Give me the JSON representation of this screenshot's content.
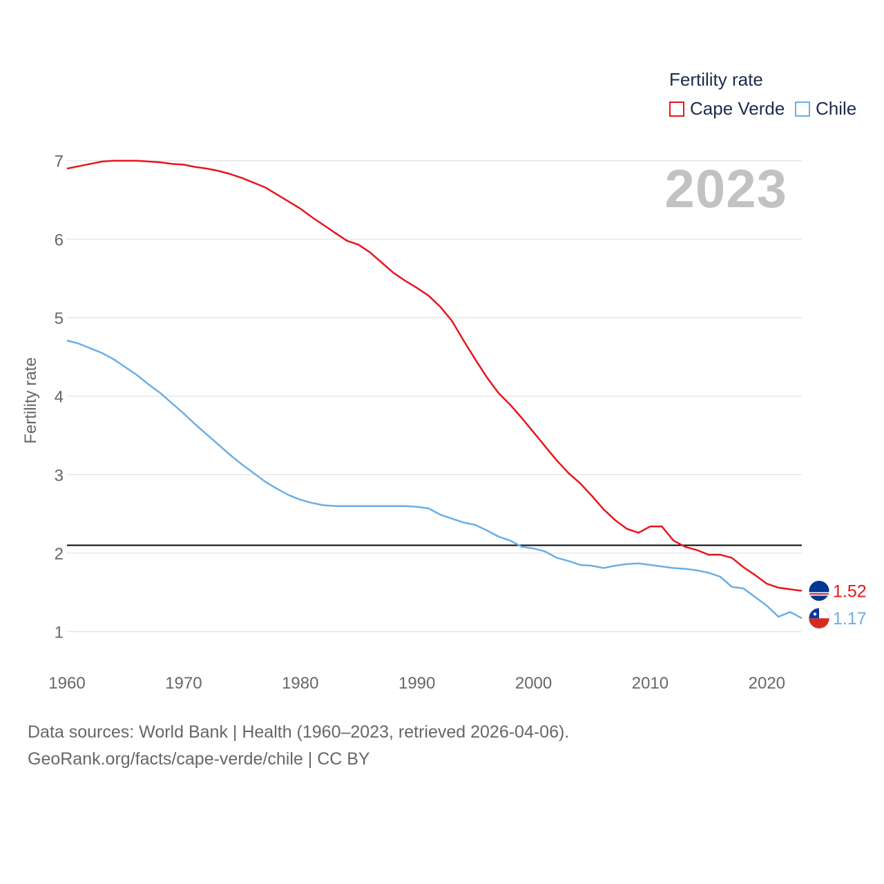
{
  "legend": {
    "title": "Fertility rate"
  },
  "year_label": "2023",
  "source": {
    "line1": "Data sources: World Bank | Health (1960–2023, retrieved 2026-04-06).",
    "line2": "GeoRank.org/facts/cape-verde/chile | CC BY"
  },
  "colors": {
    "cape_verde": "#e8141c",
    "chile": "#6aaee6",
    "grid": "#e6e6e6",
    "axis_text": "#666666",
    "reference_line": "#111111"
  },
  "chart_data": {
    "type": "line",
    "title": "Fertility rate",
    "xlabel": "",
    "ylabel": "Fertility rate",
    "xlim": [
      1960,
      2023
    ],
    "ylim": [
      0.6,
      7.2
    ],
    "x_ticks": [
      1960,
      1970,
      1980,
      1990,
      2000,
      2010,
      2020
    ],
    "y_ticks": [
      1,
      2,
      3,
      4,
      5,
      6,
      7
    ],
    "reference_line": 2.1,
    "x": [
      1960,
      1961,
      1962,
      1963,
      1964,
      1965,
      1966,
      1967,
      1968,
      1969,
      1970,
      1971,
      1972,
      1973,
      1974,
      1975,
      1976,
      1977,
      1978,
      1979,
      1980,
      1981,
      1982,
      1983,
      1984,
      1985,
      1986,
      1987,
      1988,
      1989,
      1990,
      1991,
      1992,
      1993,
      1994,
      1995,
      1996,
      1997,
      1998,
      1999,
      2000,
      2001,
      2002,
      2003,
      2004,
      2005,
      2006,
      2007,
      2008,
      2009,
      2010,
      2011,
      2012,
      2013,
      2014,
      2015,
      2016,
      2017,
      2018,
      2019,
      2020,
      2021,
      2022,
      2023
    ],
    "series": [
      {
        "name": "Cape Verde",
        "color": "#e8141c",
        "end_label": "1.52",
        "values": [
          6.9,
          6.93,
          6.96,
          6.99,
          7.0,
          7.0,
          7.0,
          6.99,
          6.98,
          6.96,
          6.95,
          6.92,
          6.9,
          6.87,
          6.83,
          6.78,
          6.72,
          6.66,
          6.57,
          6.48,
          6.39,
          6.28,
          6.18,
          6.08,
          5.98,
          5.93,
          5.83,
          5.7,
          5.57,
          5.47,
          5.38,
          5.28,
          5.14,
          4.96,
          4.71,
          4.47,
          4.24,
          4.04,
          3.89,
          3.72,
          3.54,
          3.36,
          3.18,
          3.02,
          2.89,
          2.73,
          2.56,
          2.42,
          2.31,
          2.26,
          2.34,
          2.34,
          2.16,
          2.08,
          2.04,
          1.98,
          1.98,
          1.94,
          1.82,
          1.72,
          1.61,
          1.56,
          1.54,
          1.52
        ]
      },
      {
        "name": "Chile",
        "color": "#6aaee6",
        "end_label": "1.17",
        "values": [
          4.71,
          4.67,
          4.61,
          4.55,
          4.47,
          4.37,
          4.27,
          4.15,
          4.04,
          3.91,
          3.78,
          3.64,
          3.51,
          3.38,
          3.25,
          3.13,
          3.02,
          2.91,
          2.82,
          2.74,
          2.68,
          2.64,
          2.61,
          2.6,
          2.6,
          2.6,
          2.6,
          2.6,
          2.6,
          2.6,
          2.59,
          2.57,
          2.49,
          2.44,
          2.39,
          2.36,
          2.29,
          2.21,
          2.16,
          2.08,
          2.06,
          2.02,
          1.94,
          1.9,
          1.85,
          1.84,
          1.81,
          1.84,
          1.86,
          1.87,
          1.85,
          1.83,
          1.81,
          1.8,
          1.78,
          1.75,
          1.7,
          1.57,
          1.55,
          1.44,
          1.33,
          1.19,
          1.25,
          1.17
        ]
      }
    ]
  }
}
